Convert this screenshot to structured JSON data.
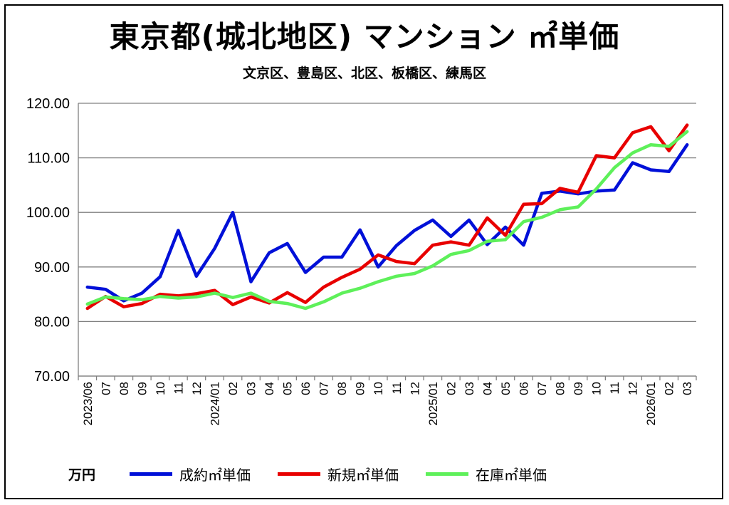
{
  "chart_data": {
    "type": "line",
    "title": "東京都(城北地区) マンション ㎡単価",
    "subtitle": "文京区、豊島区、北区、板橋区、練馬区",
    "unit_label": "万円",
    "ylim": [
      70,
      120
    ],
    "yticks": [
      "70.00",
      "80.00",
      "90.00",
      "100.00",
      "110.00",
      "120.00"
    ],
    "grid": true,
    "legend_position": "bottom",
    "categories": [
      "2023/06",
      "07",
      "08",
      "09",
      "10",
      "11",
      "12",
      "2024/01",
      "02",
      "03",
      "04",
      "05",
      "06",
      "07",
      "08",
      "09",
      "10",
      "11",
      "12",
      "2025/01",
      "02",
      "03",
      "04",
      "05",
      "06",
      "07",
      "08",
      "09",
      "10",
      "11",
      "12",
      "2026/01",
      "02",
      "03"
    ],
    "series": [
      {
        "name": "成約㎡単価",
        "color": "#0010d8",
        "values": [
          86.3,
          85.9,
          83.8,
          85.2,
          88.2,
          96.7,
          88.3,
          93.4,
          100.0,
          87.3,
          92.6,
          94.3,
          89.0,
          91.8,
          91.8,
          96.8,
          90.0,
          93.9,
          96.7,
          98.6,
          95.6,
          98.6,
          94.1,
          97.3,
          94.0,
          103.5,
          103.9,
          103.4,
          103.9,
          104.1,
          109.1,
          107.8,
          107.5,
          112.4
        ]
      },
      {
        "name": "新規㎡単価",
        "color": "#e80000",
        "values": [
          82.4,
          84.6,
          82.7,
          83.3,
          85.0,
          84.7,
          85.1,
          85.7,
          83.1,
          84.5,
          83.4,
          85.3,
          83.5,
          86.3,
          88.1,
          89.6,
          92.2,
          91.0,
          90.6,
          94.0,
          94.6,
          94.0,
          99.0,
          95.8,
          101.5,
          101.6,
          104.4,
          103.7,
          110.4,
          110.0,
          114.6,
          115.7,
          111.3,
          116.0
        ]
      },
      {
        "name": "在庫㎡単価",
        "color": "#5ef05a",
        "values": [
          83.2,
          84.5,
          84.2,
          84.0,
          84.6,
          84.3,
          84.5,
          85.2,
          84.4,
          85.2,
          83.7,
          83.3,
          82.4,
          83.6,
          85.2,
          86.1,
          87.3,
          88.3,
          88.8,
          90.2,
          92.3,
          93.0,
          94.7,
          95.0,
          98.3,
          99.1,
          100.5,
          101.0,
          104.3,
          108.2,
          110.9,
          112.4,
          112.1,
          114.8
        ]
      }
    ]
  }
}
